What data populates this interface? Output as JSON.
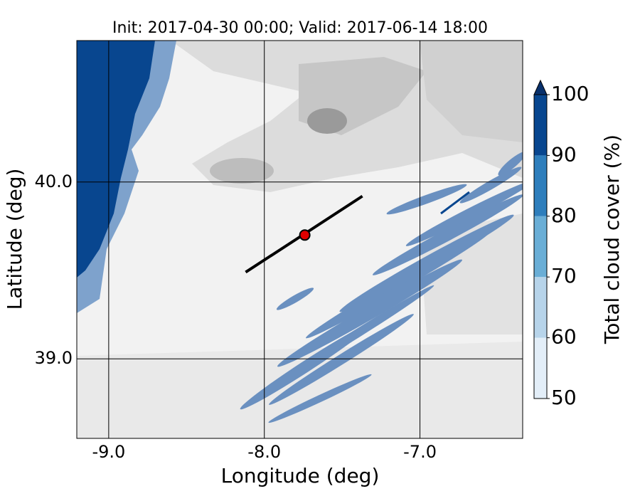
{
  "chart_data": {
    "type": "map",
    "title": "Init: 2017-04-30 00:00; Valid: 2017-06-14 18:00",
    "xlabel": "Longitude (deg)",
    "ylabel": "Latitude (deg)",
    "xlim": [
      -9.205,
      -6.34
    ],
    "ylim": [
      38.55,
      40.8
    ],
    "xticks": [
      {
        "value": -9,
        "label": "-9.0"
      },
      {
        "value": -8,
        "label": "-8.0"
      },
      {
        "value": -7,
        "label": "-7.0"
      }
    ],
    "yticks": [
      {
        "value": 39,
        "label": "39.0"
      },
      {
        "value": 40,
        "label": "40.0"
      }
    ],
    "grid": true,
    "cross_section": {
      "lon": [
        -8.12,
        -7.37
      ],
      "lat": [
        39.49,
        39.92
      ],
      "color": "#000000"
    },
    "point": {
      "lon": -7.74,
      "lat": 39.7,
      "color": "#e00000"
    },
    "colorbar": {
      "label": "Total cloud cover (%)",
      "ticks": [
        50,
        60,
        70,
        80,
        90,
        100
      ],
      "colors": [
        "#e3eef8",
        "#b7d4ea",
        "#6aaed6",
        "#2e7ebc",
        "#08468f"
      ],
      "extend_color": "#08306b"
    }
  }
}
